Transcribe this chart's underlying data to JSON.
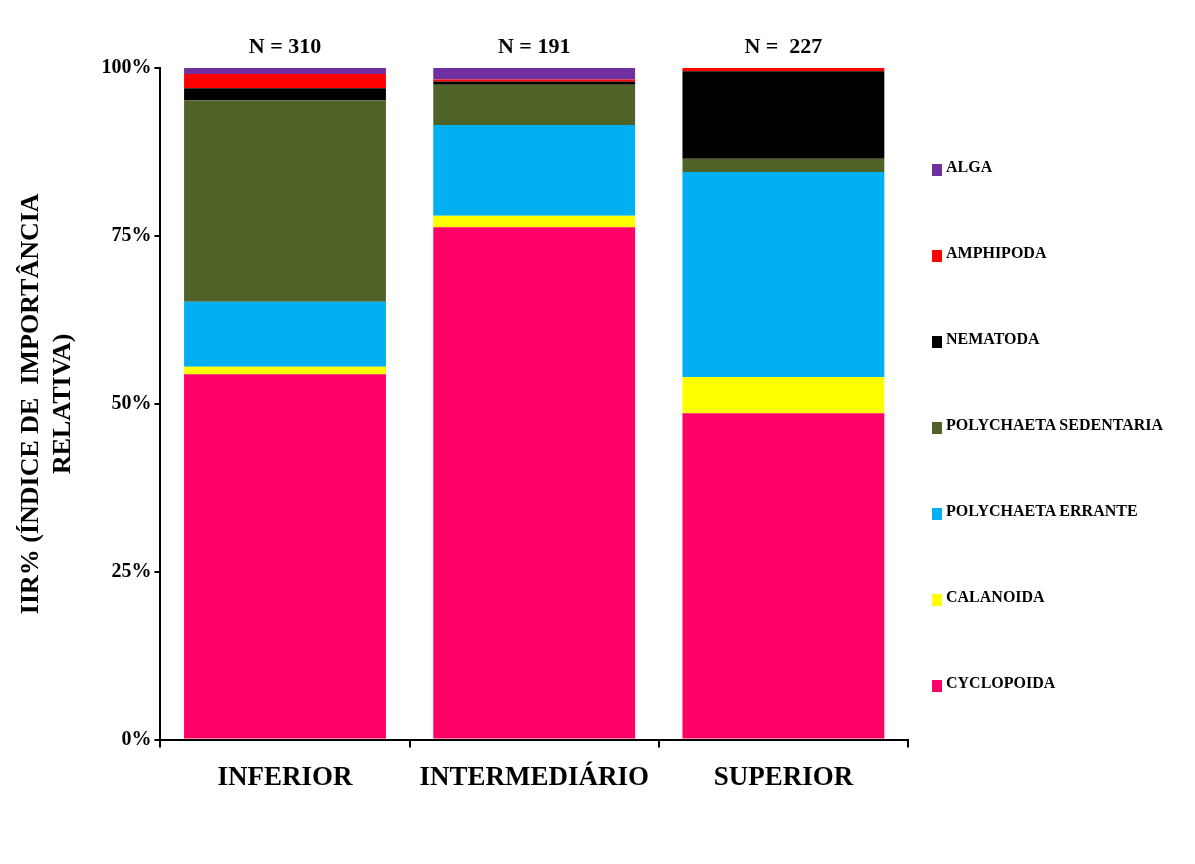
{
  "chart_data": {
    "type": "bar",
    "stacked": true,
    "ylabel": "IIR% (ÍNDICE DE  IMPORTÂNCIA RELATIVA)",
    "categories": [
      "INFERIOR",
      "INTERMEDIÁRIO",
      "SUPERIOR"
    ],
    "series": [
      {
        "name": "CYCLOPOIDA",
        "color": "#ff0066",
        "values": [
          54.4,
          76.3,
          48.6
        ]
      },
      {
        "name": "CALANOIDA",
        "color": "#ffff00",
        "values": [
          1.1,
          1.7,
          5.4
        ]
      },
      {
        "name": "POLYCHAETA ERRANTE",
        "color": "#00b0f0",
        "values": [
          9.7,
          13.5,
          30.5
        ]
      },
      {
        "name": "POLYCHAETA SEDENTARIA",
        "color": "#4f6228",
        "values": [
          30.0,
          6.0,
          2.0
        ]
      },
      {
        "name": "NEMATODA",
        "color": "#000000",
        "values": [
          1.8,
          0.5,
          13.0
        ]
      },
      {
        "name": "AMPHIPODA",
        "color": "#ff0000",
        "values": [
          2.1,
          0.3,
          0.5
        ]
      },
      {
        "name": "ALGA",
        "color": "#7030a0",
        "values": [
          0.9,
          1.7,
          0
        ]
      }
    ],
    "ylim": [
      0,
      100
    ],
    "yticks": [
      {
        "value": 0,
        "label": "0%"
      },
      {
        "value": 25,
        "label": "25%"
      },
      {
        "value": 50,
        "label": "50%"
      },
      {
        "value": 75,
        "label": "75%"
      },
      {
        "value": 100,
        "label": "100%"
      }
    ],
    "grid": false,
    "legend": "right",
    "annotations": [
      "N = 310",
      "N = 191",
      "N =  227"
    ]
  }
}
